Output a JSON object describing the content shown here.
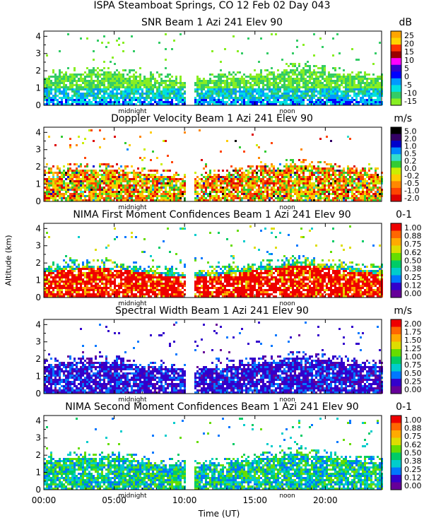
{
  "title": "ISPA Steamboat Springs, CO   12 Feb 02 Day 043",
  "shared": {
    "ylabel": "Altitude (km)",
    "xlabel": "Time (UT)",
    "y_ticks": [
      "0",
      "1",
      "2",
      "3",
      "4"
    ],
    "x_ticks": [
      "00:00",
      "05:00",
      "10:00",
      "15:00",
      "20:00"
    ],
    "midnight_label": "midnight",
    "noon_label": "noon"
  },
  "chart_data": [
    {
      "type": "heatmap",
      "title": "SNR Beam 1 Azi 241 Elev 90",
      "unit": "dB",
      "colorbar_labels": [
        "25",
        "20",
        "15",
        "10",
        "5",
        "0",
        "-5",
        "-10",
        "-15"
      ],
      "colorbar_colors": [
        "#ffa500",
        "#ffd400",
        "#ff3300",
        "#990000",
        "#ff00ff",
        "#3300cc",
        "#0000ff",
        "#0099ff",
        "#00e0e0",
        "#33cc66",
        "#88ee22"
      ],
      "ylim": [
        0,
        4.3
      ],
      "xlim": [
        0,
        24
      ],
      "field": "snr"
    },
    {
      "type": "heatmap",
      "title": "Doppler Velocity Beam 1 Azi 241 Elev 90",
      "unit": "m/s",
      "colorbar_labels": [
        "5.0",
        "2.0",
        "1.0",
        "0.5",
        "0.2",
        "0.0",
        "-0.2",
        "-0.5",
        "-1.0",
        "-2.0"
      ],
      "colorbar_colors": [
        "#000000",
        "#330066",
        "#0000cc",
        "#0088ff",
        "#33ddcc",
        "#33cc33",
        "#ccee00",
        "#ffcc00",
        "#ff8800",
        "#ff4400",
        "#dd0000"
      ],
      "ylim": [
        0,
        4.3
      ],
      "xlim": [
        0,
        24
      ],
      "field": "doppler"
    },
    {
      "type": "heatmap",
      "title": "NIMA First Moment Confidences Beam 1 Azi 241 Elev 90",
      "unit": "0-1",
      "colorbar_labels": [
        "1.00",
        "0.88",
        "0.75",
        "0.62",
        "0.50",
        "0.38",
        "0.25",
        "0.12",
        "0.00"
      ],
      "colorbar_colors": [
        "#ee0000",
        "#ff6600",
        "#ffaa00",
        "#dddd00",
        "#66dd00",
        "#00cc66",
        "#00cccc",
        "#0077ff",
        "#3300cc",
        "#660099"
      ],
      "ylim": [
        0,
        4.3
      ],
      "xlim": [
        0,
        24
      ],
      "field": "conf1"
    },
    {
      "type": "heatmap",
      "title": "Spectral Width Beam 1 Azi 241 Elev 90",
      "unit": "m/s",
      "colorbar_labels": [
        "2.00",
        "1.75",
        "1.50",
        "1.25",
        "1.00",
        "0.75",
        "0.50",
        "0.25",
        "0.00"
      ],
      "colorbar_colors": [
        "#ee0000",
        "#ff6600",
        "#ffaa00",
        "#dddd00",
        "#66dd00",
        "#00cc66",
        "#00cccc",
        "#0077ff",
        "#3300cc",
        "#660099"
      ],
      "ylim": [
        0,
        4.3
      ],
      "xlim": [
        0,
        24
      ],
      "field": "width"
    },
    {
      "type": "heatmap",
      "title": "NIMA Second Moment Confidences Beam 1 Azi 241 Elev 90",
      "unit": "0-1",
      "colorbar_labels": [
        "1.00",
        "0.88",
        "0.75",
        "0.62",
        "0.50",
        "0.38",
        "0.25",
        "0.12",
        "0.00"
      ],
      "colorbar_colors": [
        "#ee0000",
        "#ff6600",
        "#ffaa00",
        "#dddd00",
        "#66dd00",
        "#00cc66",
        "#00cccc",
        "#0077ff",
        "#3300cc",
        "#660099"
      ],
      "ylim": [
        0,
        4.3
      ],
      "xlim": [
        0,
        24
      ],
      "field": "conf2"
    }
  ]
}
